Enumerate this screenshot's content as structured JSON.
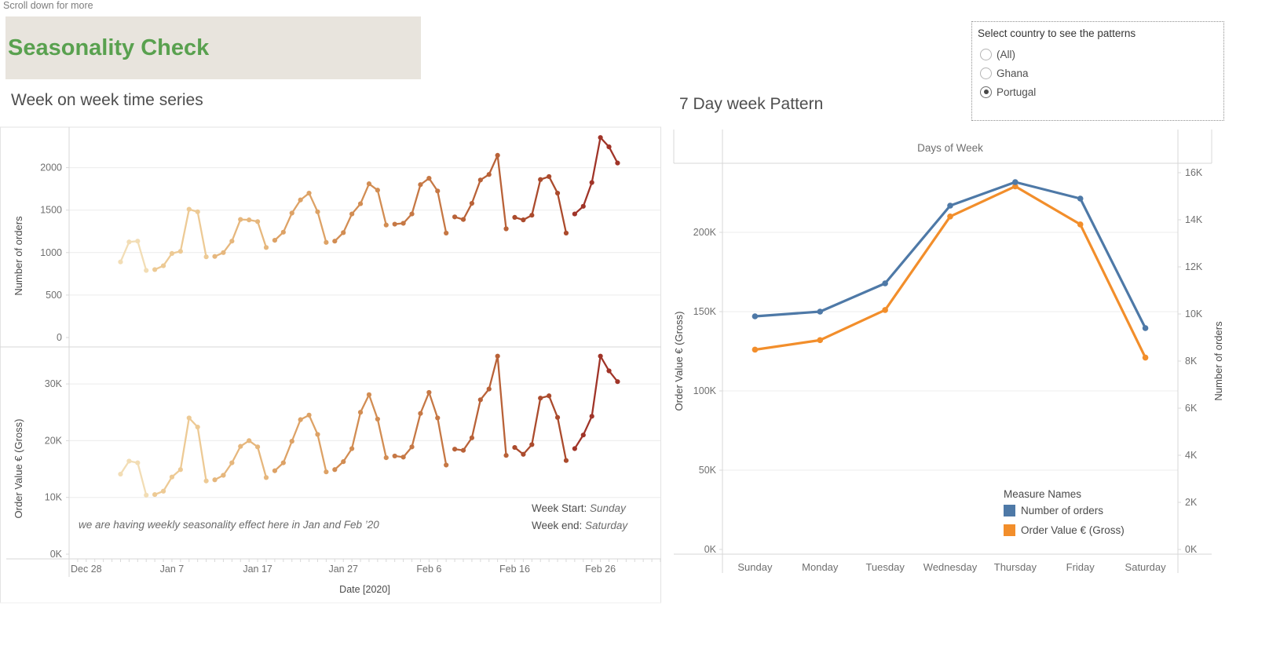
{
  "page": {
    "scroll_hint": "Scroll down for more",
    "title": "Seasonality Check"
  },
  "filter": {
    "title": "Select country to see the patterns",
    "options": [
      {
        "label": "(All)",
        "selected": false
      },
      {
        "label": "Ghana",
        "selected": false
      },
      {
        "label": "Portugal",
        "selected": true
      }
    ]
  },
  "colors": {
    "accent_green": "#59a14f",
    "header_bg": "#e8e4dd",
    "series_blue": "#4e79a7",
    "series_orange": "#f28e2b",
    "gridline": "#ececec",
    "axis_line": "#d9d9d9",
    "tick_text": "#6f6f6f",
    "label_text": "#4a4a4a",
    "week_palette": [
      "#f2ddb5",
      "#edca95",
      "#e6b77d",
      "#dda266",
      "#d28d53",
      "#c67845",
      "#b96238",
      "#ab4b2d",
      "#a03428"
    ]
  },
  "chart_data": [
    {
      "id": "week-on-week-time-series",
      "type": "line",
      "title": "Week on week time series",
      "xlabel": "Date [2020]",
      "x_tick_labels": [
        "Dec 28",
        "Jan 7",
        "Jan 17",
        "Jan 27",
        "Feb 6",
        "Feb 16",
        "Feb 26"
      ],
      "x_tick_days": [
        0,
        10,
        20,
        30,
        40,
        50,
        60
      ],
      "x_domain_days": [
        -2,
        67
      ],
      "color_by": "week (light to dark, Dec 29 week to Feb 23 week)",
      "subplots": [
        {
          "ylabel": "Number of orders",
          "ytick_labels": [
            "0",
            "500",
            "1000",
            "1500",
            "2000"
          ],
          "ytick_values": [
            0,
            500,
            1000,
            1500,
            2000
          ],
          "ylim": [
            0,
            2480
          ]
        },
        {
          "ylabel": "Order Value € (Gross)",
          "ytick_labels": [
            "0K",
            "10K",
            "20K",
            "30K"
          ],
          "ytick_values_k": [
            0,
            10,
            20,
            30
          ],
          "ylim_k": [
            0,
            37.5
          ]
        }
      ],
      "weeks": [
        {
          "start_day": 4,
          "orders": [
            890,
            1125,
            1135,
            790
          ],
          "value_k": [
            14.1,
            16.4,
            16.1,
            10.4
          ]
        },
        {
          "start_day": 8,
          "orders": [
            800,
            845,
            990,
            1015,
            1510,
            1480,
            950
          ],
          "value_k": [
            10.5,
            11.1,
            13.6,
            14.9,
            24.0,
            22.4,
            12.9
          ]
        },
        {
          "start_day": 15,
          "orders": [
            955,
            1000,
            1135,
            1390,
            1385,
            1365,
            1060
          ],
          "value_k": [
            13.1,
            13.9,
            16.1,
            19.0,
            20.0,
            18.9,
            13.5
          ]
        },
        {
          "start_day": 22,
          "orders": [
            1145,
            1240,
            1465,
            1620,
            1700,
            1480,
            1120
          ],
          "value_k": [
            14.7,
            16.1,
            19.9,
            23.7,
            24.5,
            21.1,
            14.5
          ]
        },
        {
          "start_day": 29,
          "orders": [
            1135,
            1235,
            1455,
            1575,
            1810,
            1735,
            1325
          ],
          "value_k": [
            14.9,
            16.3,
            18.6,
            25.0,
            28.1,
            23.8,
            17.0
          ]
        },
        {
          "start_day": 36,
          "orders": [
            1335,
            1345,
            1455,
            1800,
            1875,
            1725,
            1230
          ],
          "value_k": [
            17.3,
            17.1,
            18.9,
            24.8,
            28.5,
            24.0,
            15.7
          ]
        },
        {
          "start_day": 43,
          "orders": [
            1420,
            1390,
            1580,
            1855,
            1920,
            2145,
            1280
          ],
          "value_k": [
            18.5,
            18.3,
            20.5,
            27.2,
            29.1,
            34.9,
            17.4
          ]
        },
        {
          "start_day": 50,
          "orders": [
            1415,
            1385,
            1440,
            1860,
            1895,
            1700,
            1230
          ],
          "value_k": [
            18.8,
            17.6,
            19.3,
            27.5,
            27.9,
            24.1,
            16.5
          ]
        },
        {
          "start_day": 57,
          "orders": [
            1455,
            1545,
            1825,
            2355,
            2245,
            2055
          ],
          "value_k": [
            18.6,
            21.0,
            24.3,
            34.9,
            32.3,
            30.4
          ]
        }
      ],
      "annotation": "we are having weekly seasonality effect here in Jan and Feb ’20",
      "week_start_label": "Week Start:",
      "week_start_value": "Sunday",
      "week_end_label": "Week end:",
      "week_end_value": "Saturday"
    },
    {
      "id": "seven-day-week-pattern",
      "type": "line",
      "title": "7 Day week Pattern",
      "col_header": "Days of Week",
      "categories": [
        "Sunday",
        "Monday",
        "Tuesday",
        "Wednesday",
        "Thursday",
        "Friday",
        "Saturday"
      ],
      "left_axis": {
        "label": "Order Value € (Gross)",
        "tick_labels": [
          "0K",
          "50K",
          "100K",
          "150K",
          "200K"
        ],
        "tick_values": [
          0,
          50000,
          100000,
          150000,
          200000
        ],
        "max": 250000
      },
      "right_axis": {
        "label": "Number of orders",
        "tick_labels": [
          "0K",
          "2K",
          "4K",
          "6K",
          "8K",
          "10K",
          "12K",
          "14K",
          "16K"
        ],
        "tick_values": [
          0,
          2000,
          4000,
          6000,
          8000,
          10000,
          12000,
          14000,
          16000
        ],
        "max": 16700
      },
      "series": [
        {
          "name": "Order Value € (Gross)",
          "axis": "left",
          "color": "#f28e2b",
          "values": [
            126000,
            132000,
            151000,
            210000,
            229000,
            205000,
            121000
          ]
        },
        {
          "name": "Number of orders",
          "axis": "right",
          "color": "#4e79a7",
          "values": [
            9900,
            10100,
            11300,
            14600,
            15600,
            14900,
            9400
          ]
        }
      ],
      "legend": {
        "title": "Measure Names",
        "items": [
          {
            "label": "Number of orders",
            "color": "#4e79a7"
          },
          {
            "label": "Order Value € (Gross)",
            "color": "#f28e2b"
          }
        ]
      }
    }
  ]
}
